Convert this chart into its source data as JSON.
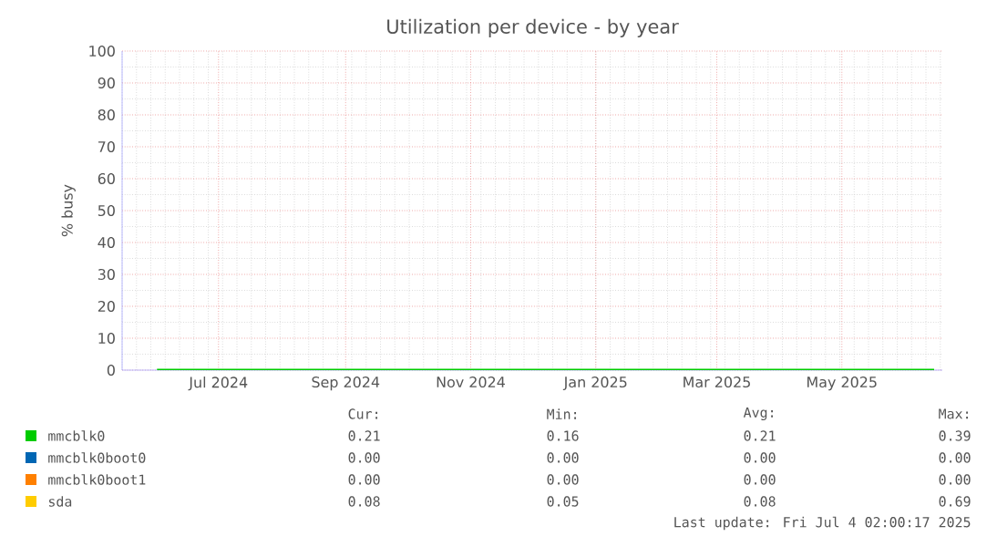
{
  "chart_data": {
    "type": "line",
    "title": "Utilization per device - by year",
    "ylabel": "% busy",
    "xlim": [
      "2024-05-15",
      "2025-06-19"
    ],
    "xticks": [
      {
        "value": "2024-07-01",
        "label": "Jul 2024"
      },
      {
        "value": "2024-09-01",
        "label": "Sep 2024"
      },
      {
        "value": "2024-11-01",
        "label": "Nov 2024"
      },
      {
        "value": "2025-01-01",
        "label": "Jan 2025"
      },
      {
        "value": "2025-03-01",
        "label": "Mar 2025"
      },
      {
        "value": "2025-05-01",
        "label": "May 2025"
      }
    ],
    "ylim": [
      0,
      100
    ],
    "yticks": [
      0,
      10,
      20,
      30,
      40,
      50,
      60,
      70,
      80,
      90,
      100
    ],
    "grid": true,
    "legend": "bottom",
    "series": [
      {
        "name": "mmcblk0",
        "color": "#00cc00",
        "x": [
          "2024-06-01",
          "2024-09-01",
          "2024-12-01",
          "2025-03-01",
          "2025-06-15"
        ],
        "values": [
          0.2,
          0.2,
          0.2,
          0.2,
          0.2
        ]
      },
      {
        "name": "mmcblk0boot0",
        "color": "#0066b3"
      },
      {
        "name": "mmcblk0boot1",
        "color": "#ff8000"
      },
      {
        "name": "sda",
        "color": "#ffcc00"
      }
    ],
    "annotations": [
      "Cur:",
      "Min:",
      "Avg:",
      "Max:",
      "0.21",
      "0.16",
      "0.21",
      "0.39",
      "0.00",
      "0.00",
      "0.00",
      "0.00",
      "0.00",
      "0.00",
      "0.00",
      "0.00",
      "0.08",
      "0.05",
      "0.08",
      "0.69",
      "Last update: Fri Jul  4 02:00:17 2025"
    ]
  }
}
